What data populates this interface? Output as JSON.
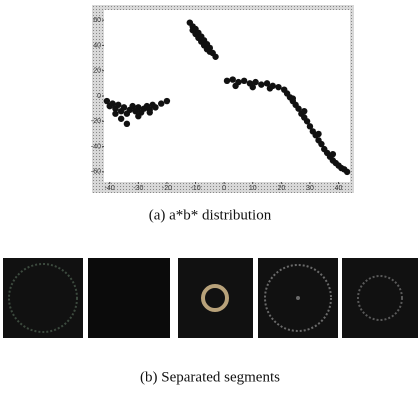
{
  "figure_a": {
    "caption": "(a) a*b* distribution",
    "chart_data": {
      "type": "scatter",
      "xlim": [
        -42,
        44
      ],
      "xticks": [
        -40,
        -30,
        -20,
        -10,
        0,
        10,
        20,
        30,
        40
      ],
      "ylim": [
        -68,
        68
      ],
      "yticks": [
        -60,
        -40,
        -20,
        0,
        20,
        40,
        60
      ],
      "series": [
        {
          "color": "#111111",
          "x": [
            -41,
            -40,
            -39,
            -38,
            -37,
            -36,
            -35,
            -34,
            -33,
            -32,
            -31,
            -30,
            -29,
            -28,
            -27,
            -26,
            -25,
            -24,
            -22,
            -20,
            -36,
            -34,
            -38,
            -30,
            -26
          ],
          "y": [
            -4,
            -8,
            -6,
            -10,
            -7,
            -12,
            -9,
            -14,
            -11,
            -8,
            -12,
            -9,
            -13,
            -10,
            -8,
            -11,
            -7,
            -9,
            -6,
            -4,
            -18,
            -22,
            -14,
            -16,
            -13
          ]
        },
        {
          "color": "#111111",
          "x": [
            -12,
            -11,
            -11,
            -10,
            -10,
            -9,
            -9,
            -8,
            -8,
            -7,
            -7,
            -6,
            -6,
            -5,
            -5,
            -4,
            -3
          ],
          "y": [
            58,
            55,
            52,
            53,
            49,
            50,
            46,
            47,
            43,
            44,
            40,
            41,
            37,
            38,
            35,
            34,
            31
          ]
        },
        {
          "color": "#111111",
          "x": [
            1,
            3,
            5,
            7,
            9,
            11,
            13,
            15,
            17,
            19,
            21,
            22,
            23,
            24,
            25,
            26,
            27,
            28,
            29,
            30,
            31,
            32,
            33,
            34,
            35,
            36,
            37,
            38,
            39,
            40,
            41,
            42,
            43,
            4,
            10,
            16,
            24,
            28,
            33,
            38
          ],
          "y": [
            12,
            13,
            11,
            12,
            10,
            11,
            9,
            10,
            8,
            7,
            5,
            2,
            -1,
            -4,
            -7,
            -10,
            -14,
            -17,
            -20,
            -24,
            -28,
            -31,
            -35,
            -38,
            -42,
            -45,
            -48,
            -51,
            -53,
            -55,
            -57,
            -58,
            -60,
            8,
            7,
            6,
            -2,
            -12,
            -30,
            -46
          ]
        }
      ]
    }
  },
  "figure_b": {
    "caption": "(b) Separated segments"
  }
}
